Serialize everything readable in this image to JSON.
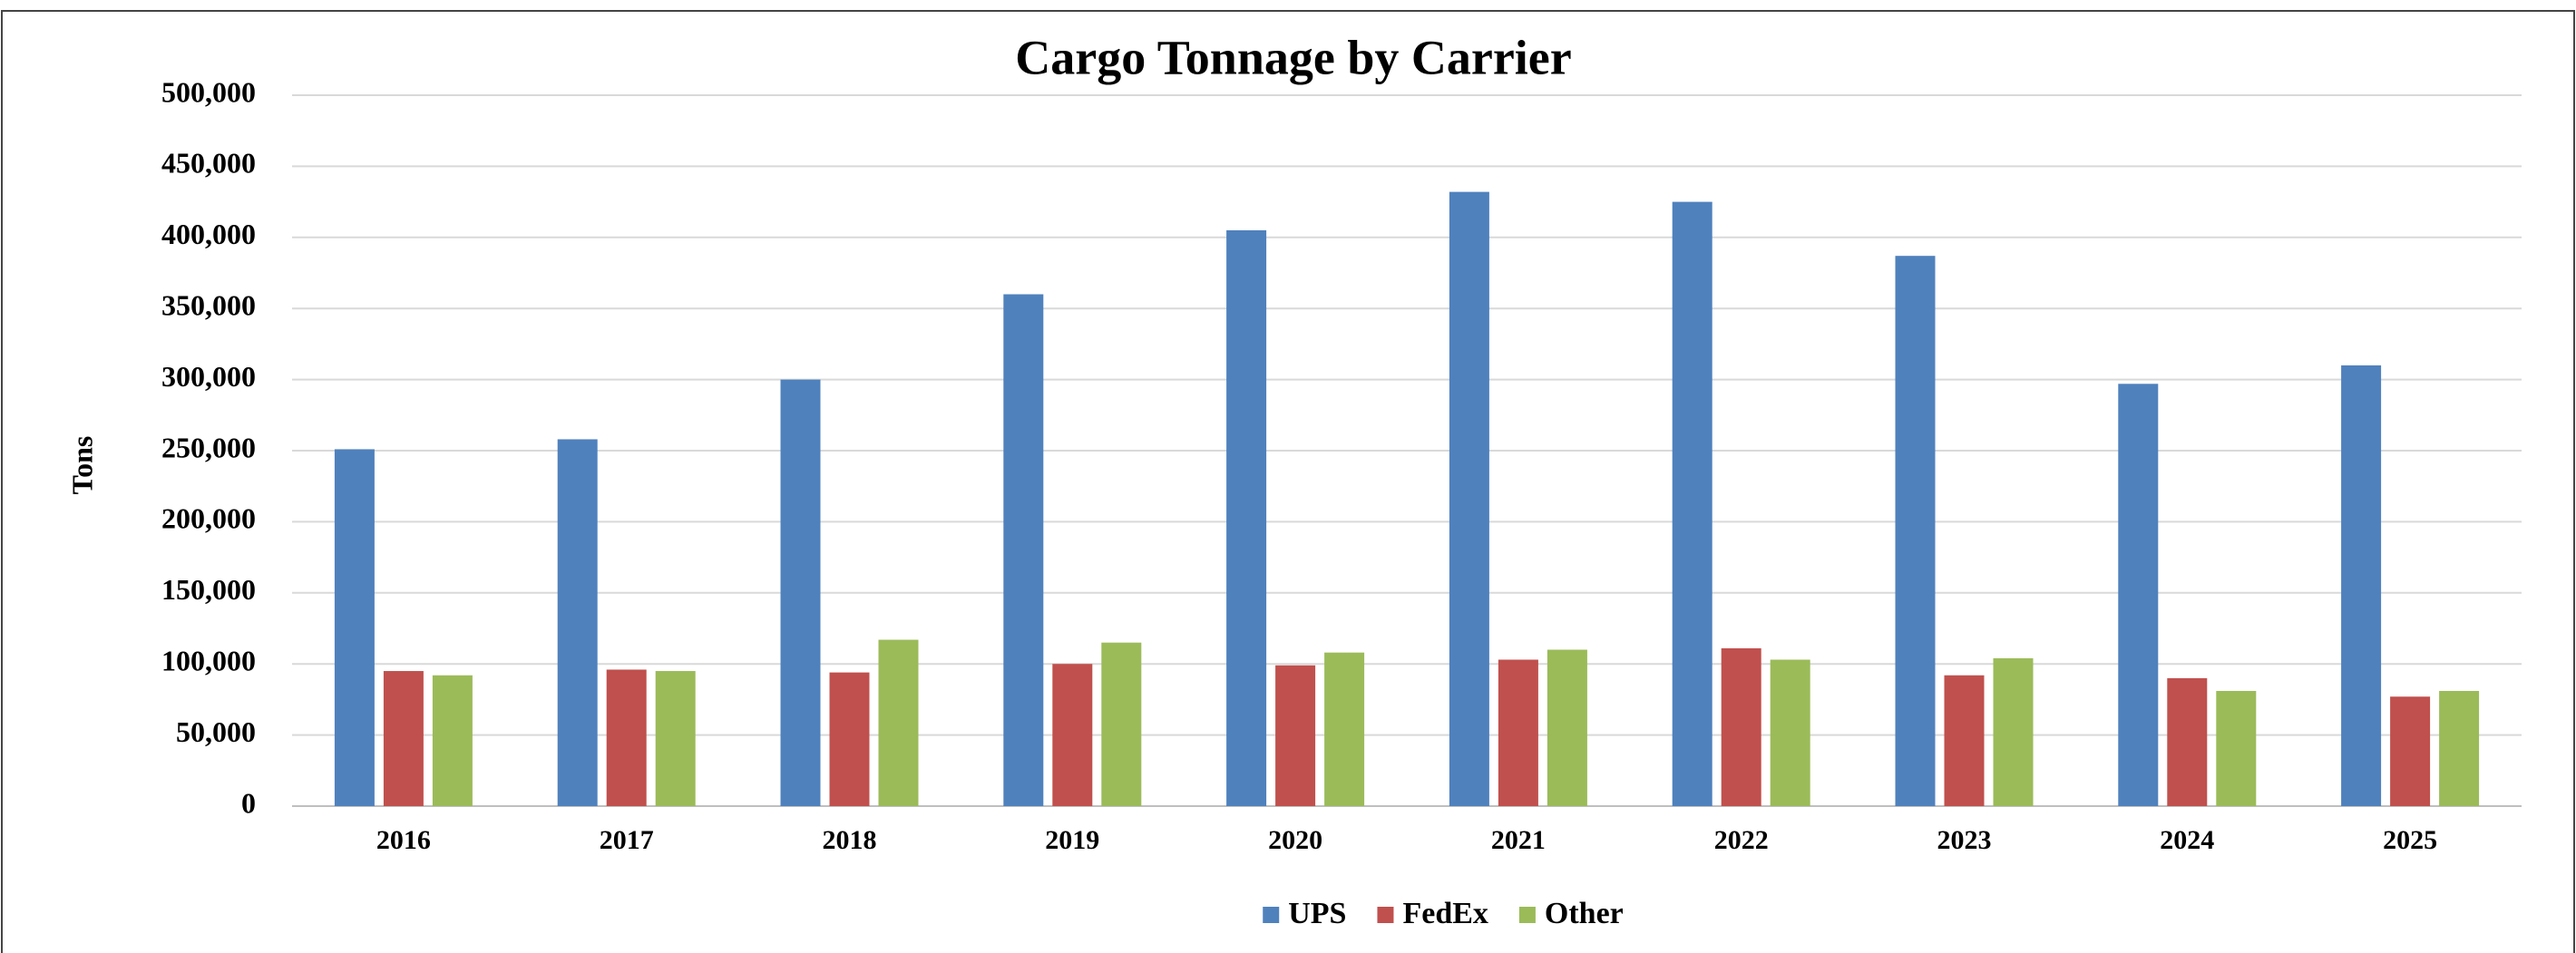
{
  "chart_data": {
    "type": "bar",
    "title": "Cargo Tonnage by Carrier",
    "y_label": "Tons",
    "categories": [
      "2016",
      "2017",
      "2018",
      "2019",
      "2020",
      "2021",
      "2022",
      "2023",
      "2024",
      "2025"
    ],
    "series": [
      {
        "name": "UPS",
        "color": "#4f81bd",
        "values": [
          251000,
          258000,
          300000,
          360000,
          405000,
          432000,
          425000,
          387000,
          297000,
          310000
        ]
      },
      {
        "name": "FedEx",
        "color": "#c0504d",
        "values": [
          95000,
          96000,
          94000,
          100000,
          99000,
          103000,
          111000,
          92000,
          90000,
          77000
        ]
      },
      {
        "name": "Other",
        "color": "#9bbb59",
        "values": [
          92000,
          95000,
          117000,
          115000,
          108000,
          110000,
          103000,
          104000,
          81000,
          81000
        ]
      }
    ],
    "ylim": [
      0,
      500000
    ],
    "yticks": [
      0,
      {
        "value": 50000,
        "label": "50,000"
      },
      {
        "value": 100000,
        "label": "100,000"
      },
      {
        "value": 150000,
        "label": "150,000"
      },
      {
        "value": 200000,
        "label": "200,000"
      },
      {
        "value": 250000,
        "label": "250,000"
      },
      {
        "value": 300000,
        "label": "300,000"
      },
      {
        "value": 350000,
        "label": "350,000"
      },
      {
        "value": 400000,
        "label": "400,000"
      },
      {
        "value": 450000,
        "label": "450,000"
      },
      {
        "value": 500000,
        "label": "500,000"
      }
    ],
    "grid": true,
    "legend": "bottom"
  }
}
